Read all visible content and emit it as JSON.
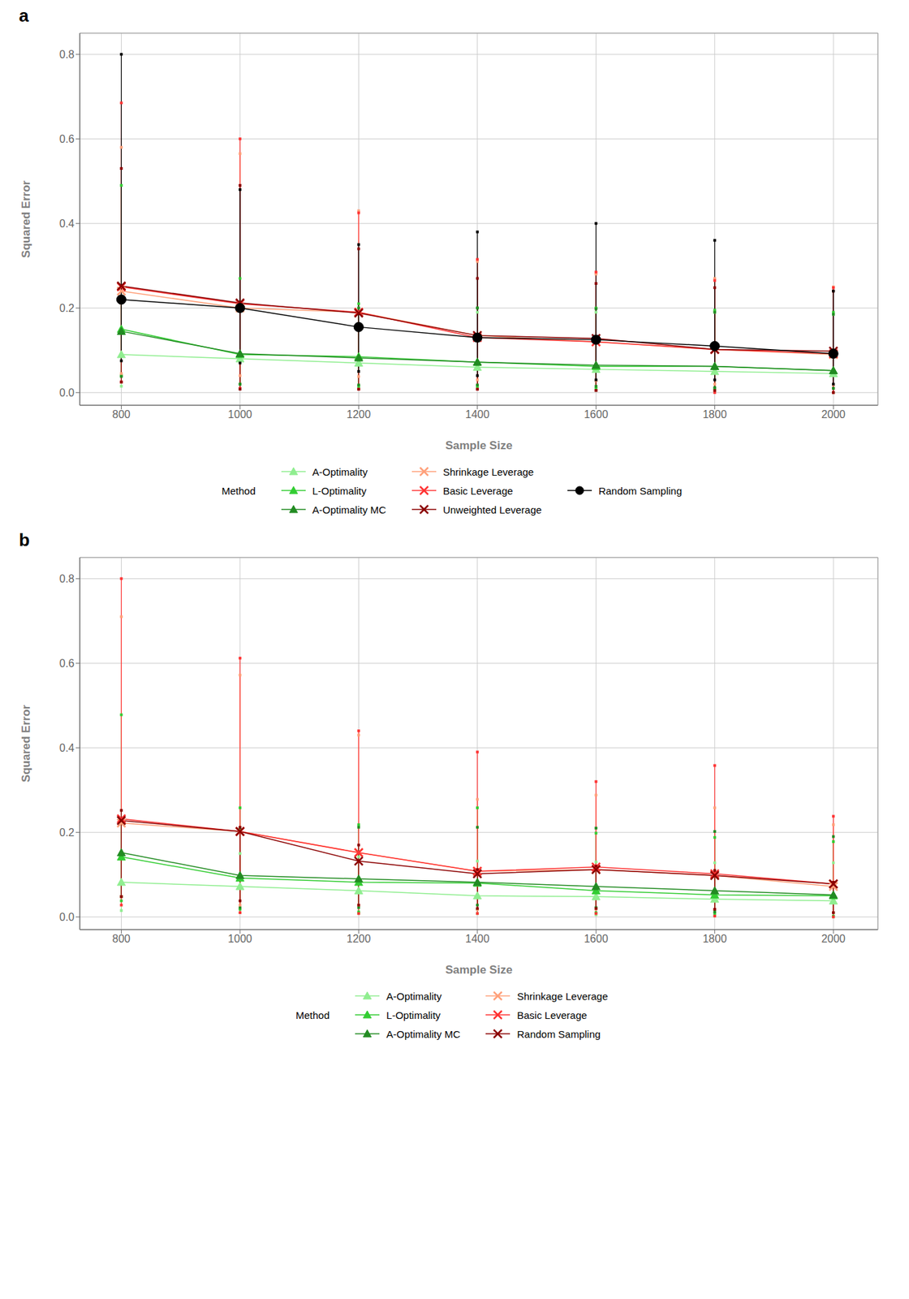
{
  "chart_data": [
    {
      "type": "line",
      "title": "a",
      "xlabel": "Sample Size",
      "ylabel": "Squared Error",
      "x": [
        800,
        1000,
        1200,
        1400,
        1600,
        1800,
        2000
      ],
      "xlim": [
        730,
        2075
      ],
      "xticks": [
        800,
        1000,
        1200,
        1400,
        1600,
        1800,
        2000
      ],
      "ylim": [
        -0.03,
        0.85
      ],
      "yticks": [
        {
          "value": 0.0,
          "label": "0.0"
        },
        0.2,
        0.4,
        0.6,
        0.8
      ],
      "grid": true,
      "legend": "bottom",
      "annotations": [
        "Method"
      ],
      "series": [
        {
          "name": "A-Optimality",
          "color": "#90EE90",
          "marker": "triangle",
          "values": [
            0.09,
            0.08,
            0.07,
            0.06,
            0.055,
            0.05,
            0.045
          ],
          "lo": [
            0.015,
            0.01,
            0.01,
            0.01,
            0.005,
            0.005,
            0.0
          ],
          "hi": [
            0.225,
            0.21,
            0.2,
            0.19,
            0.19,
            0.19,
            0.185
          ]
        },
        {
          "name": "L-Optimality",
          "color": "#32CD32",
          "marker": "triangle",
          "values": [
            0.15,
            0.09,
            0.085,
            0.072,
            0.062,
            0.062,
            0.052
          ],
          "lo": [
            0.04,
            0.02,
            0.015,
            0.015,
            0.01,
            0.01,
            0.01
          ],
          "hi": [
            0.49,
            0.27,
            0.21,
            0.2,
            0.2,
            0.195,
            0.19
          ]
        },
        {
          "name": "A-Optimality MC",
          "color": "#228B22",
          "marker": "triangle",
          "values": [
            0.145,
            0.092,
            0.082,
            0.072,
            0.065,
            0.062,
            0.052
          ],
          "lo": [
            0.038,
            0.02,
            0.018,
            0.018,
            0.015,
            0.012,
            0.01
          ],
          "hi": [
            0.225,
            0.205,
            0.2,
            0.2,
            0.198,
            0.19,
            0.185
          ]
        },
        {
          "name": "Shrinkage Leverage",
          "color": "#FFA07A",
          "marker": "x",
          "values": [
            0.24,
            0.2,
            0.19,
            0.135,
            0.12,
            0.102,
            0.09
          ],
          "lo": [
            0.045,
            0.04,
            0.038,
            0.03,
            0.028,
            0.02,
            0.018
          ],
          "hi": [
            0.58,
            0.565,
            0.43,
            0.31,
            0.28,
            0.27,
            0.25
          ]
        },
        {
          "name": "Basic Leverage",
          "color": "#FF3333",
          "marker": "x",
          "values": [
            0.25,
            0.21,
            0.19,
            0.13,
            0.12,
            0.102,
            0.092
          ],
          "lo": [
            0.025,
            0.01,
            0.008,
            0.008,
            0.005,
            0.0,
            0.0
          ],
          "hi": [
            0.685,
            0.6,
            0.425,
            0.315,
            0.285,
            0.265,
            0.248
          ]
        },
        {
          "name": "Unweighted Leverage",
          "color": "#8B0000",
          "marker": "x",
          "values": [
            0.252,
            0.212,
            0.188,
            0.135,
            0.128,
            0.102,
            0.098
          ],
          "lo": [
            0.025,
            0.008,
            0.008,
            0.008,
            0.005,
            0.005,
            0.0
          ],
          "hi": [
            0.53,
            0.49,
            0.34,
            0.27,
            0.258,
            0.248,
            0.24
          ]
        },
        {
          "name": "Random Sampling",
          "color": "#000000",
          "marker": "circle",
          "values": [
            0.22,
            0.2,
            0.155,
            0.13,
            0.125,
            0.11,
            0.092
          ],
          "lo": [
            0.075,
            0.07,
            0.05,
            0.04,
            0.03,
            0.03,
            0.02
          ],
          "hi": [
            0.8,
            0.48,
            0.35,
            0.38,
            0.4,
            0.36,
            0.24
          ]
        }
      ]
    },
    {
      "type": "line",
      "title": "b",
      "xlabel": "Sample Size",
      "ylabel": "Squared Error",
      "x": [
        800,
        1000,
        1200,
        1400,
        1600,
        1800,
        2000
      ],
      "xlim": [
        730,
        2075
      ],
      "xticks": [
        800,
        1000,
        1200,
        1400,
        1600,
        1800,
        2000
      ],
      "ylim": [
        -0.03,
        0.85
      ],
      "yticks": [
        {
          "value": 0.0,
          "label": "0.0"
        },
        0.2,
        0.4,
        0.6,
        0.8
      ],
      "grid": true,
      "legend": "bottom",
      "annotations": [
        "Method"
      ],
      "series": [
        {
          "name": "A-Optimality",
          "color": "#90EE90",
          "marker": "triangle",
          "values": [
            0.082,
            0.072,
            0.062,
            0.05,
            0.048,
            0.042,
            0.038
          ],
          "lo": [
            0.015,
            0.01,
            0.008,
            0.008,
            0.005,
            0.002,
            0.0
          ],
          "hi": [
            0.23,
            0.15,
            0.142,
            0.132,
            0.13,
            0.128,
            0.128
          ]
        },
        {
          "name": "L-Optimality",
          "color": "#32CD32",
          "marker": "triangle",
          "values": [
            0.142,
            0.092,
            0.082,
            0.08,
            0.062,
            0.052,
            0.05
          ],
          "lo": [
            0.038,
            0.018,
            0.012,
            0.018,
            0.01,
            0.008,
            0.002
          ],
          "hi": [
            0.478,
            0.258,
            0.218,
            0.258,
            0.198,
            0.188,
            0.178
          ]
        },
        {
          "name": "A-Optimality MC",
          "color": "#228B22",
          "marker": "triangle",
          "values": [
            0.152,
            0.098,
            0.09,
            0.082,
            0.072,
            0.062,
            0.052
          ],
          "lo": [
            0.048,
            0.022,
            0.022,
            0.028,
            0.022,
            0.012,
            0.01
          ],
          "hi": [
            0.222,
            0.21,
            0.212,
            0.212,
            0.21,
            0.202,
            0.19
          ]
        },
        {
          "name": "Shrinkage Leverage",
          "color": "#FFA07A",
          "marker": "x",
          "values": [
            0.222,
            0.202,
            0.152,
            0.108,
            0.112,
            0.098,
            0.072
          ],
          "lo": [
            0.048,
            0.028,
            0.028,
            0.018,
            0.018,
            0.018,
            0.01
          ],
          "hi": [
            0.71,
            0.572,
            0.43,
            0.278,
            0.288,
            0.258,
            0.218
          ]
        },
        {
          "name": "Basic Leverage",
          "color": "#FF3333",
          "marker": "x",
          "values": [
            0.232,
            0.202,
            0.152,
            0.108,
            0.118,
            0.102,
            0.078
          ],
          "lo": [
            0.028,
            0.01,
            0.008,
            0.008,
            0.008,
            0.002,
            0.0
          ],
          "hi": [
            0.8,
            0.612,
            0.44,
            0.39,
            0.32,
            0.358,
            0.238
          ]
        },
        {
          "name": "Random Sampling",
          "color": "#8B0000",
          "marker": "x",
          "values": [
            0.228,
            0.202,
            0.132,
            0.102,
            0.112,
            0.098,
            0.078
          ],
          "lo": [
            0.048,
            0.038,
            0.028,
            0.02,
            0.02,
            0.018,
            0.01
          ],
          "hi": [
            0.252,
            0.212,
            0.17,
            0.112,
            0.12,
            0.11,
            0.082
          ]
        }
      ]
    }
  ]
}
